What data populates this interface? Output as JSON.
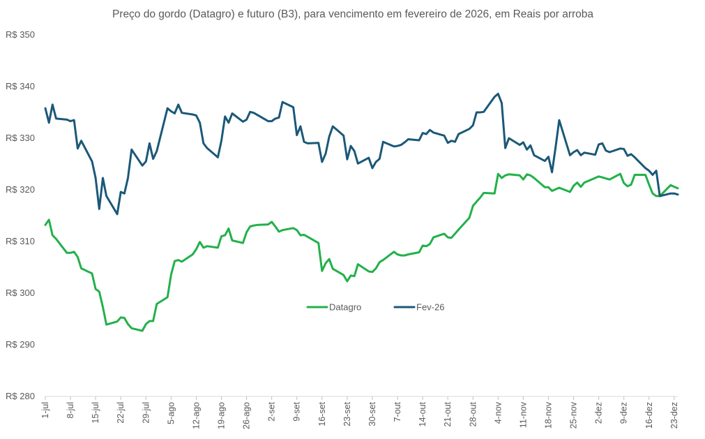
{
  "chart_data": {
    "type": "line",
    "title": "Preço do gordo (Datagro) e futuro (B3), para vencimento em fevereiro de 2026, em Reais por arroba",
    "xlabel": "",
    "ylabel": "",
    "ylim": [
      280,
      350
    ],
    "y_step": 10,
    "y_tick_prefix": "R$ ",
    "grid": false,
    "legend_position": "center",
    "x_tick_labels": [
      "1-jul",
      "8-jul",
      "15-jul",
      "22-jul",
      "29-jul",
      "5-ago",
      "12-ago",
      "19-ago",
      "26-ago",
      "2-set",
      "9-set",
      "16-set",
      "23-set",
      "30-set",
      "7-out",
      "14-out",
      "21-out",
      "28-out",
      "4-nov",
      "11-nov",
      "18-nov",
      "25-nov",
      "2-dez",
      "9-dez",
      "16-dez",
      "23-dez"
    ],
    "x_range_days": [
      0,
      176
    ],
    "series": [
      {
        "name": "Datagro",
        "color": "#22b04a",
        "points": [
          [
            0,
            313.2
          ],
          [
            1,
            314.2
          ],
          [
            2,
            311.2
          ],
          [
            3,
            310.5
          ],
          [
            6,
            307.8
          ],
          [
            7,
            307.8
          ],
          [
            8,
            308
          ],
          [
            9,
            307
          ],
          [
            10,
            304.8
          ],
          [
            13,
            303.8
          ],
          [
            14,
            300.8
          ],
          [
            15,
            300.3
          ],
          [
            16,
            297.3
          ],
          [
            17,
            293.9
          ],
          [
            20,
            294.5
          ],
          [
            21,
            295.3
          ],
          [
            22,
            295.2
          ],
          [
            23,
            294.0
          ],
          [
            24,
            293.2
          ],
          [
            27,
            292.7
          ],
          [
            28,
            294.0
          ],
          [
            29,
            294.6
          ],
          [
            30,
            294.6
          ],
          [
            31,
            297.9
          ],
          [
            34,
            299.2
          ],
          [
            35,
            303.6
          ],
          [
            36,
            306.2
          ],
          [
            37,
            306.4
          ],
          [
            38,
            306.1
          ],
          [
            41,
            307.5
          ],
          [
            42,
            308.5
          ],
          [
            43,
            309.9
          ],
          [
            44,
            308.8
          ],
          [
            45,
            309.1
          ],
          [
            48,
            308.8
          ],
          [
            49,
            311.0
          ],
          [
            50,
            311.2
          ],
          [
            51,
            312.5
          ],
          [
            52,
            310.2
          ],
          [
            55,
            309.7
          ],
          [
            56,
            311.8
          ],
          [
            57,
            312.9
          ],
          [
            58,
            313.1
          ],
          [
            59,
            313.2
          ],
          [
            62,
            313.3
          ],
          [
            63,
            313.8
          ],
          [
            64,
            312.9
          ],
          [
            65,
            311.9
          ],
          [
            66,
            312.2
          ],
          [
            69,
            312.6
          ],
          [
            70,
            312.2
          ],
          [
            71,
            311.2
          ],
          [
            72,
            311.3
          ],
          [
            73,
            310.9
          ],
          [
            76,
            309.7
          ],
          [
            77,
            304.3
          ],
          [
            78,
            305.8
          ],
          [
            79,
            306.6
          ],
          [
            80,
            304.7
          ],
          [
            83,
            303.5
          ],
          [
            84,
            302.3
          ],
          [
            85,
            303.4
          ],
          [
            86,
            303.3
          ],
          [
            87,
            305.6
          ],
          [
            90,
            304.2
          ],
          [
            91,
            304.1
          ],
          [
            92,
            304.8
          ],
          [
            93,
            306
          ],
          [
            94,
            306.4
          ],
          [
            97,
            308.0
          ],
          [
            98,
            307.5
          ],
          [
            99,
            307.3
          ],
          [
            100,
            307.3
          ],
          [
            101,
            307.5
          ],
          [
            104,
            307.9
          ],
          [
            105,
            309.2
          ],
          [
            106,
            309.1
          ],
          [
            107,
            309.5
          ],
          [
            108,
            310.8
          ],
          [
            111,
            311.5
          ],
          [
            112,
            310.8
          ],
          [
            113,
            310.7
          ],
          [
            114,
            311.5
          ],
          [
            115,
            312.3
          ],
          [
            118,
            314.6
          ],
          [
            119,
            316.9
          ],
          [
            120,
            317.7
          ],
          [
            121,
            318.5
          ],
          [
            122,
            319.4
          ],
          [
            125,
            319.3
          ],
          [
            126,
            323.1
          ],
          [
            127,
            322.3
          ],
          [
            128,
            322.8
          ],
          [
            129,
            323.0
          ],
          [
            132,
            322.8
          ],
          [
            133,
            322
          ],
          [
            134,
            323.0
          ],
          [
            135,
            322.8
          ],
          [
            136,
            322.3
          ],
          [
            139,
            320.5
          ],
          [
            140,
            320.5
          ],
          [
            141,
            319.8
          ],
          [
            142,
            320.1
          ],
          [
            143,
            320.4
          ],
          [
            146,
            319.6
          ],
          [
            147,
            320.8
          ],
          [
            148,
            321.4
          ],
          [
            149,
            320.6
          ],
          [
            150,
            321.4
          ],
          [
            153,
            322.3
          ],
          [
            154,
            322.6
          ],
          [
            155,
            322.4
          ],
          [
            156,
            322.2
          ],
          [
            157,
            322.0
          ],
          [
            160,
            323.1
          ],
          [
            161,
            321.3
          ],
          [
            162,
            320.7
          ],
          [
            163,
            321.0
          ],
          [
            164,
            322.9
          ],
          [
            167,
            322.9
          ],
          [
            168,
            321.0
          ],
          [
            169,
            319.3
          ],
          [
            170,
            318.8
          ],
          [
            171,
            318.8
          ],
          [
            174,
            320.9
          ],
          [
            175,
            320.6
          ],
          [
            176,
            320.3
          ]
        ]
      },
      {
        "name": "Fev-26",
        "color": "#1b5878",
        "points": [
          [
            0,
            335.8
          ],
          [
            1,
            333.0
          ],
          [
            2,
            336.5
          ],
          [
            3,
            333.8
          ],
          [
            6,
            333.6
          ],
          [
            7,
            333.3
          ],
          [
            8,
            333.5
          ],
          [
            9,
            328.0
          ],
          [
            10,
            329.5
          ],
          [
            13,
            325.5
          ],
          [
            14,
            322.3
          ],
          [
            15,
            316.3
          ],
          [
            16,
            322.3
          ],
          [
            17,
            318.8
          ],
          [
            20,
            315.3
          ],
          [
            21,
            319.6
          ],
          [
            22,
            319.3
          ],
          [
            23,
            322.3
          ],
          [
            24,
            327.8
          ],
          [
            27,
            324.7
          ],
          [
            28,
            325.5
          ],
          [
            29,
            329.0
          ],
          [
            30,
            326.0
          ],
          [
            31,
            327.5
          ],
          [
            34,
            335.8
          ],
          [
            35,
            335.2
          ],
          [
            36,
            334.8
          ],
          [
            37,
            336.5
          ],
          [
            38,
            334.9
          ],
          [
            41,
            334.6
          ],
          [
            42,
            334.4
          ],
          [
            43,
            333.0
          ],
          [
            44,
            329.0
          ],
          [
            45,
            328.1
          ],
          [
            48,
            326.3
          ],
          [
            49,
            329.5
          ],
          [
            50,
            334.2
          ],
          [
            51,
            333.0
          ],
          [
            52,
            334.8
          ],
          [
            55,
            333.2
          ],
          [
            56,
            333.6
          ],
          [
            57,
            335.1
          ],
          [
            58,
            334.9
          ],
          [
            59,
            334.5
          ],
          [
            62,
            333.3
          ],
          [
            63,
            333.3
          ],
          [
            64,
            333.8
          ],
          [
            65,
            334.0
          ],
          [
            66,
            337.0
          ],
          [
            69,
            336.0
          ],
          [
            70,
            330.6
          ],
          [
            71,
            332.3
          ],
          [
            72,
            329.3
          ],
          [
            73,
            329.0
          ],
          [
            76,
            329.1
          ],
          [
            77,
            325.4
          ],
          [
            78,
            327.0
          ],
          [
            79,
            330.3
          ],
          [
            80,
            332.3
          ],
          [
            83,
            330.5
          ],
          [
            84,
            325.9
          ],
          [
            85,
            328.5
          ],
          [
            86,
            327.5
          ],
          [
            87,
            325.1
          ],
          [
            90,
            326.2
          ],
          [
            91,
            324.2
          ],
          [
            92,
            325.4
          ],
          [
            93,
            326.0
          ],
          [
            94,
            329.3
          ],
          [
            97,
            328.4
          ],
          [
            98,
            328.5
          ],
          [
            99,
            328.7
          ],
          [
            100,
            329.2
          ],
          [
            101,
            329.8
          ],
          [
            104,
            329.6
          ],
          [
            105,
            331.0
          ],
          [
            106,
            330.8
          ],
          [
            107,
            331.6
          ],
          [
            108,
            331.1
          ],
          [
            111,
            330.5
          ],
          [
            112,
            329.1
          ],
          [
            113,
            329.5
          ],
          [
            114,
            329.3
          ],
          [
            115,
            330.8
          ],
          [
            118,
            331.8
          ],
          [
            119,
            332.5
          ],
          [
            120,
            335.0
          ],
          [
            121,
            335.0
          ],
          [
            122,
            335.1
          ],
          [
            125,
            338.0
          ],
          [
            126,
            338.6
          ],
          [
            127,
            336.8
          ],
          [
            128,
            328.1
          ],
          [
            129,
            330.0
          ],
          [
            132,
            328.7
          ],
          [
            133,
            329.2
          ],
          [
            134,
            327.8
          ],
          [
            135,
            328.6
          ],
          [
            136,
            326.7
          ],
          [
            139,
            325.6
          ],
          [
            140,
            326.4
          ],
          [
            141,
            323.4
          ],
          [
            142,
            328.3
          ],
          [
            143,
            333.5
          ],
          [
            146,
            326.7
          ],
          [
            147,
            327.3
          ],
          [
            148,
            327.7
          ],
          [
            149,
            326.7
          ],
          [
            150,
            327.2
          ],
          [
            153,
            326.8
          ],
          [
            154,
            328.8
          ],
          [
            155,
            329.0
          ],
          [
            156,
            327.6
          ],
          [
            157,
            327.3
          ],
          [
            160,
            328.0
          ],
          [
            161,
            327.9
          ],
          [
            162,
            326.6
          ],
          [
            163,
            326.9
          ],
          [
            164,
            326.3
          ],
          [
            167,
            324.2
          ],
          [
            168,
            323.7
          ],
          [
            169,
            322.9
          ],
          [
            170,
            323.7
          ],
          [
            171,
            318.8
          ],
          [
            174,
            319.3
          ],
          [
            175,
            319.3
          ],
          [
            176,
            319.1
          ]
        ]
      }
    ]
  }
}
